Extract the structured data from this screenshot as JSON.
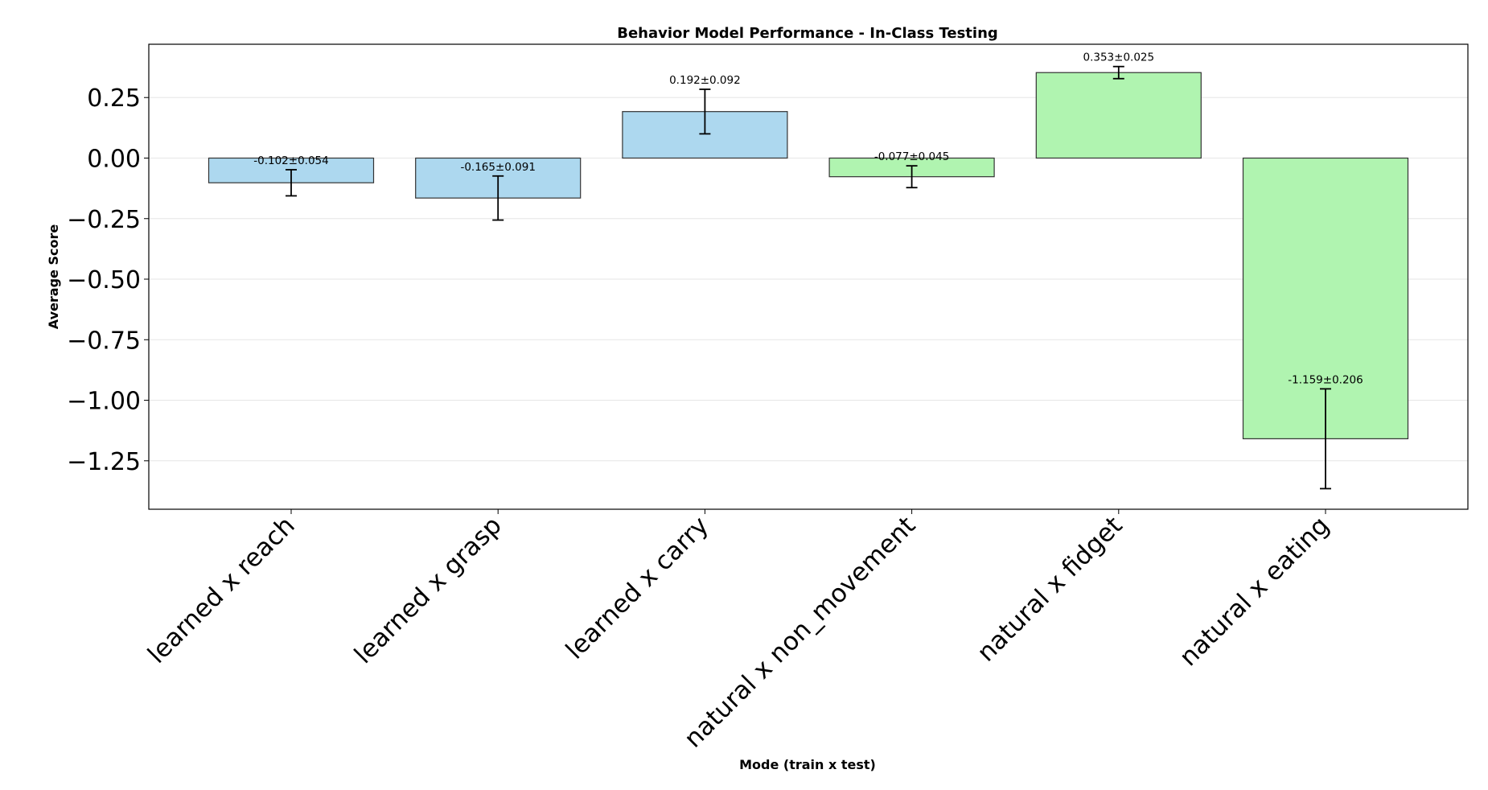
{
  "chart_data": {
    "type": "bar",
    "title": "Behavior Model Performance - In-Class Testing",
    "xlabel": "Mode (train x test)",
    "ylabel": "Average Score",
    "categories": [
      "learned x reach",
      "learned x grasp",
      "learned x carry",
      "natural x non_movement",
      "natural x fidget",
      "natural x eating"
    ],
    "values": [
      -0.102,
      -0.165,
      0.192,
      -0.077,
      0.353,
      -1.159
    ],
    "errors": [
      0.054,
      0.091,
      0.092,
      0.045,
      0.025,
      0.206
    ],
    "value_labels": [
      "-0.102±0.054",
      "-0.165±0.091",
      "0.192±0.092",
      "-0.077±0.045",
      "0.353±0.025",
      "-1.159±0.206"
    ],
    "bar_colors": [
      "#add8ef",
      "#add8ef",
      "#add8ef",
      "#b0f4b0",
      "#b0f4b0",
      "#b0f4b0"
    ],
    "ylim": [
      -1.45,
      0.47
    ],
    "yticks": [
      0.25,
      0.0,
      -0.25,
      -0.5,
      -0.75,
      -1.0,
      -1.25
    ],
    "ytick_labels": [
      "0.25",
      "0.00",
      "−0.25",
      "−0.50",
      "−0.75",
      "−1.00",
      "−1.25"
    ],
    "grid": true
  }
}
